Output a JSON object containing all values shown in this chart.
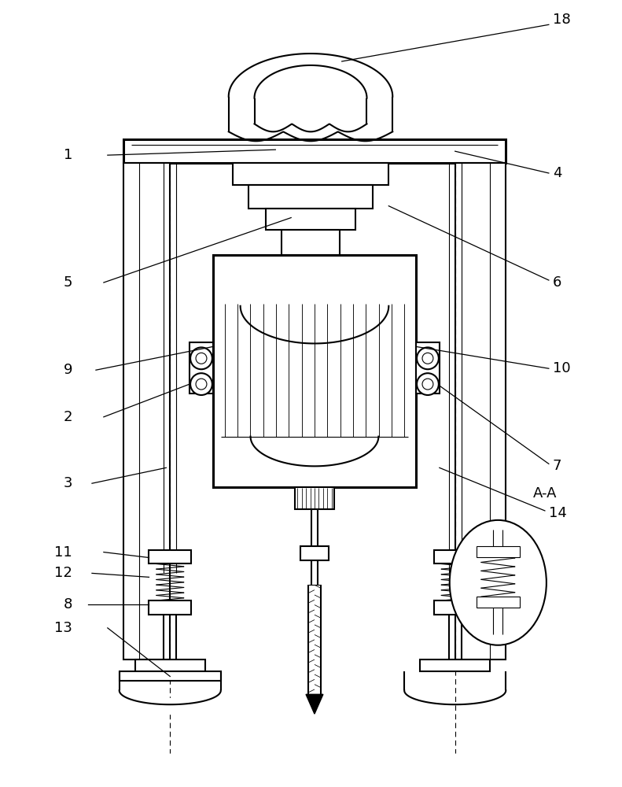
{
  "bg_color": "#ffffff",
  "line_color": "#000000",
  "lw": 1.5,
  "lw_thin": 0.8,
  "lw_thick": 2.2
}
